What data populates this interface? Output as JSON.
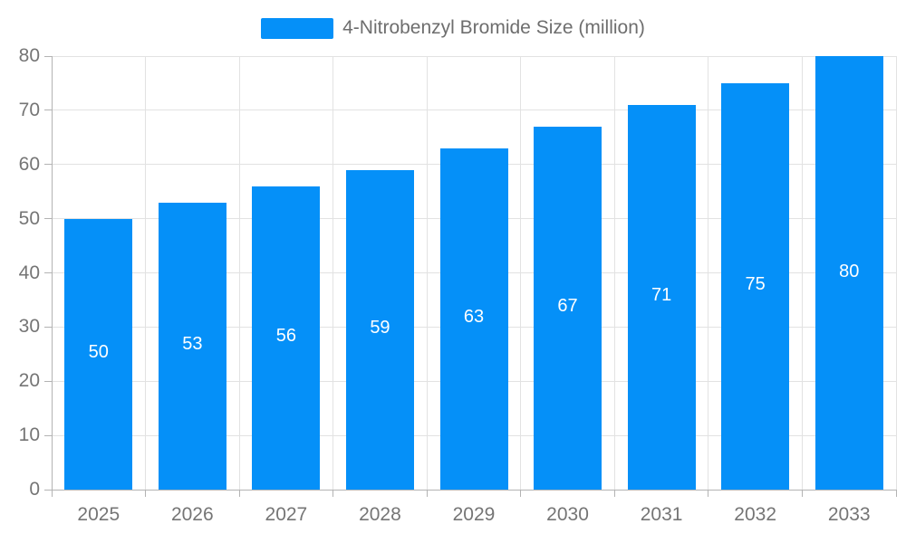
{
  "chart_data": {
    "type": "bar",
    "title": "",
    "legend": {
      "label": "4-Nitrobenzyl Bromide Size (million)",
      "position": "top"
    },
    "series_name": "4-Nitrobenzyl Bromide Size (million)",
    "categories": [
      "2025",
      "2026",
      "2027",
      "2028",
      "2029",
      "2030",
      "2031",
      "2032",
      "2033"
    ],
    "values": [
      50,
      53,
      56,
      59,
      63,
      67,
      71,
      75,
      80
    ],
    "value_labels_shown": true,
    "xlabel": "",
    "ylabel": "",
    "ylim": [
      0,
      80
    ],
    "yticks": [
      0,
      10,
      20,
      30,
      40,
      50,
      60,
      70,
      80
    ],
    "grid": true,
    "colors": {
      "bar": "#0590f8",
      "value_label": "#ffffff",
      "axis_text": "#757575",
      "legend_text": "#6e6e6e",
      "grid_line": "#e2e2e2",
      "axis_line": "#b3b3b3"
    }
  }
}
